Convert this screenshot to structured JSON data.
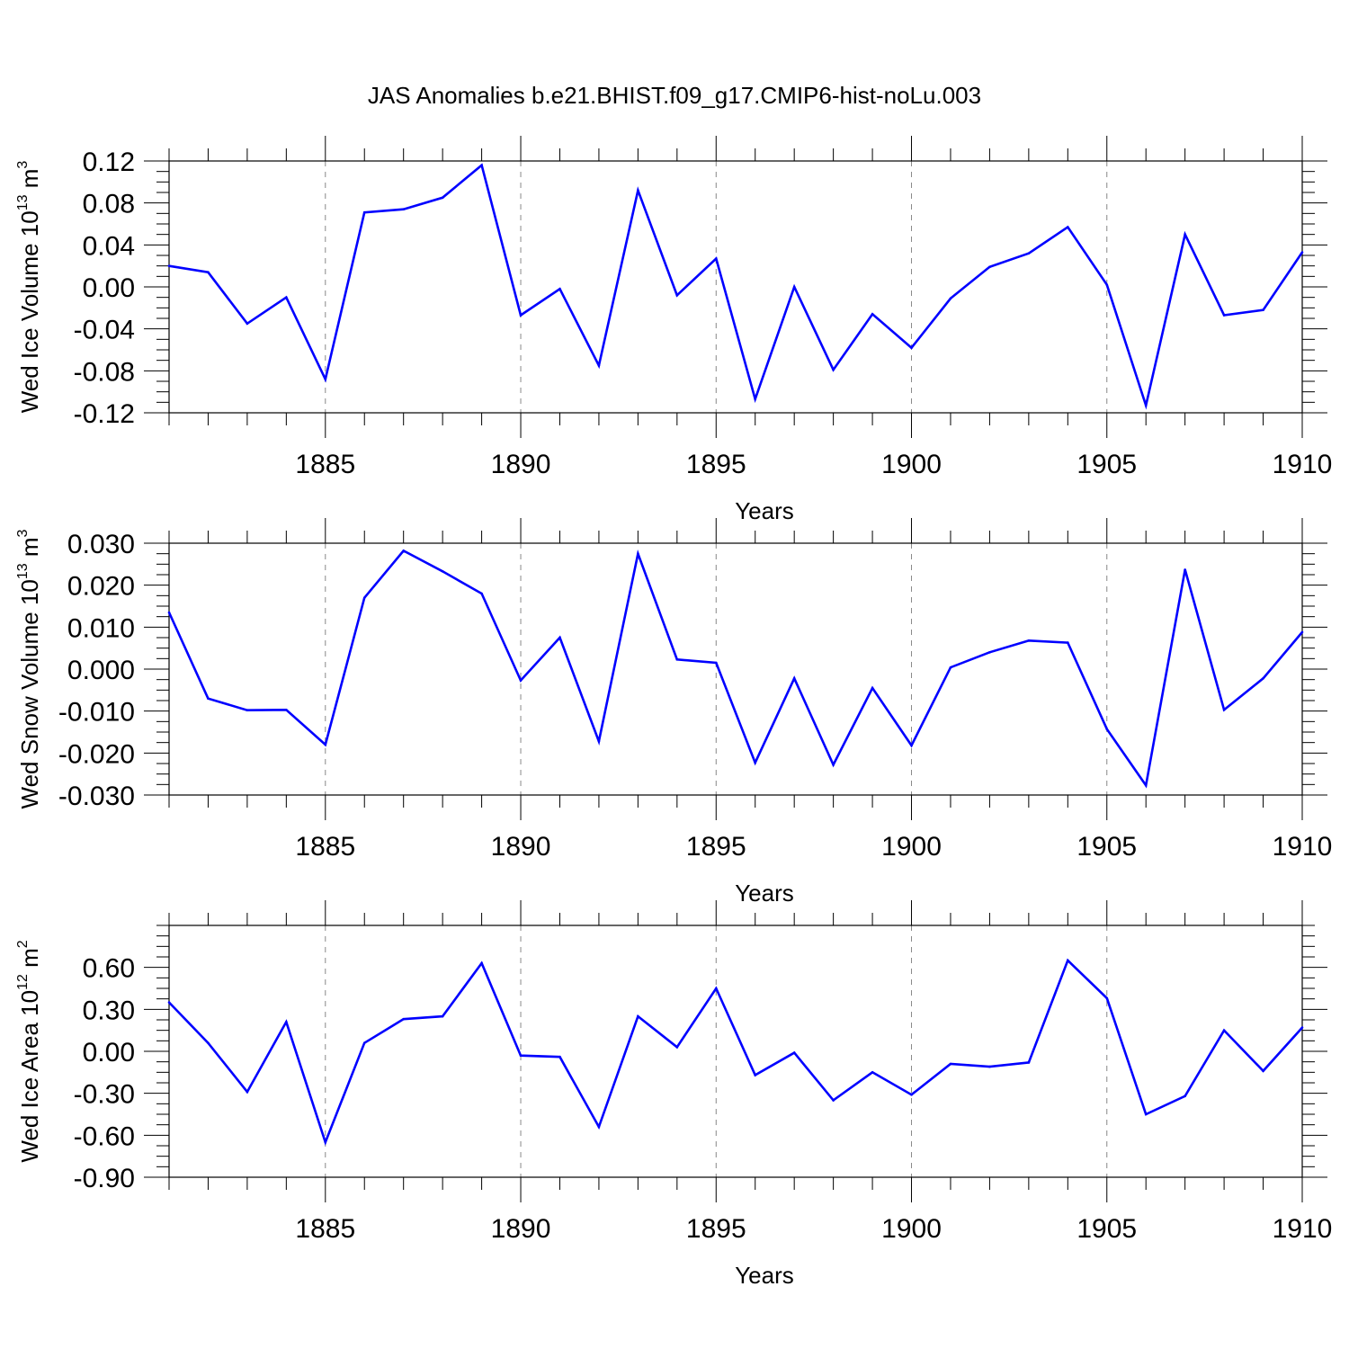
{
  "title": "JAS Anomalies b.e21.BHIST.f09_g17.CMIP6-hist-noLu.003",
  "colors": {
    "line": "#0000ff",
    "axes": "#000000",
    "grid": "#888888",
    "background": "#ffffff"
  },
  "chart_data": [
    {
      "type": "line",
      "ylabel": "Wed Ice Volume 10",
      "ylabel_sup": "13",
      "ylabel_unit": " m",
      "ylabel_unit_sup": "3",
      "xlabel": "Years",
      "xlim": [
        1881,
        1910
      ],
      "ylim": [
        -0.12,
        0.12
      ],
      "xticks": [
        1885,
        1890,
        1895,
        1900,
        1905,
        1910
      ],
      "xtick_labels": [
        "1885",
        "1890",
        "1895",
        "1900",
        "1905",
        "1910"
      ],
      "yticks": [
        -0.12,
        -0.08,
        -0.04,
        0.0,
        0.04,
        0.08,
        0.12
      ],
      "ytick_labels": [
        "-0.12",
        "-0.08",
        "-0.04",
        "0.00",
        "0.04",
        "0.08",
        "0.12"
      ],
      "grid": "vertical dashed at major x ticks",
      "x": [
        1881,
        1882,
        1883,
        1884,
        1885,
        1886,
        1887,
        1888,
        1889,
        1890,
        1891,
        1892,
        1893,
        1894,
        1895,
        1896,
        1897,
        1898,
        1899,
        1900,
        1901,
        1902,
        1903,
        1904,
        1905,
        1906,
        1907,
        1908,
        1909,
        1910
      ],
      "series": [
        {
          "name": "Wed Ice Volume",
          "values": [
            0.02,
            0.014,
            -0.035,
            -0.01,
            -0.088,
            0.071,
            0.074,
            0.085,
            0.116,
            -0.027,
            -0.002,
            -0.075,
            0.092,
            -0.008,
            0.027,
            -0.107,
            0.0,
            -0.079,
            -0.026,
            -0.058,
            -0.011,
            0.019,
            0.032,
            0.057,
            0.002,
            -0.113,
            0.05,
            -0.027,
            -0.022,
            0.033
          ]
        }
      ]
    },
    {
      "type": "line",
      "ylabel": "Wed Snow Volume 10",
      "ylabel_sup": "13",
      "ylabel_unit": " m",
      "ylabel_unit_sup": "3",
      "xlabel": "Years",
      "xlim": [
        1881,
        1910
      ],
      "ylim": [
        -0.03,
        0.03
      ],
      "xticks": [
        1885,
        1890,
        1895,
        1900,
        1905,
        1910
      ],
      "xtick_labels": [
        "1885",
        "1890",
        "1895",
        "1900",
        "1905",
        "1910"
      ],
      "yticks": [
        -0.03,
        -0.02,
        -0.01,
        0.0,
        0.01,
        0.02,
        0.03
      ],
      "ytick_labels": [
        "-0.030",
        "-0.020",
        "-0.010",
        "0.000",
        "0.010",
        "0.020",
        "0.030"
      ],
      "grid": "vertical dashed at major x ticks",
      "x": [
        1881,
        1882,
        1883,
        1884,
        1885,
        1886,
        1887,
        1888,
        1889,
        1890,
        1891,
        1892,
        1893,
        1894,
        1895,
        1896,
        1897,
        1898,
        1899,
        1900,
        1901,
        1902,
        1903,
        1904,
        1905,
        1906,
        1907,
        1908,
        1909,
        1910
      ],
      "series": [
        {
          "name": "Wed Snow Volume",
          "values": [
            0.0135,
            -0.007,
            -0.0098,
            -0.0097,
            -0.018,
            0.017,
            0.0282,
            0.0233,
            0.018,
            -0.0027,
            0.0075,
            -0.0172,
            0.0275,
            0.0023,
            0.0015,
            -0.0223,
            -0.0022,
            -0.0228,
            -0.0045,
            -0.0182,
            0.0004,
            0.004,
            0.0068,
            0.0063,
            -0.0143,
            -0.0277,
            0.0237,
            -0.0097,
            -0.0022,
            0.0088
          ]
        }
      ]
    },
    {
      "type": "line",
      "ylabel": "Wed Ice Area 10",
      "ylabel_sup": "12",
      "ylabel_unit": " m",
      "ylabel_unit_sup": "2",
      "xlabel": "Years",
      "xlim": [
        1881,
        1910
      ],
      "ylim": [
        -0.9,
        0.9
      ],
      "xticks": [
        1885,
        1890,
        1895,
        1900,
        1905,
        1910
      ],
      "xtick_labels": [
        "1885",
        "1890",
        "1895",
        "1900",
        "1905",
        "1910"
      ],
      "yticks": [
        -0.9,
        -0.6,
        -0.3,
        0.0,
        0.3,
        0.6
      ],
      "ytick_labels": [
        "-0.90",
        "-0.60",
        "-0.30",
        "0.00",
        "0.30",
        "0.60"
      ],
      "grid": "vertical dashed at major x ticks",
      "x": [
        1881,
        1882,
        1883,
        1884,
        1885,
        1886,
        1887,
        1888,
        1889,
        1890,
        1891,
        1892,
        1893,
        1894,
        1895,
        1896,
        1897,
        1898,
        1899,
        1900,
        1901,
        1902,
        1903,
        1904,
        1905,
        1906,
        1907,
        1908,
        1909,
        1910
      ],
      "series": [
        {
          "name": "Wed Ice Area",
          "values": [
            0.35,
            0.06,
            -0.29,
            0.21,
            -0.65,
            0.06,
            0.23,
            0.25,
            0.63,
            -0.03,
            -0.04,
            -0.54,
            0.25,
            0.03,
            0.45,
            -0.17,
            -0.01,
            -0.35,
            -0.15,
            -0.31,
            -0.09,
            -0.11,
            -0.08,
            0.65,
            0.38,
            -0.45,
            -0.32,
            0.15,
            -0.14,
            0.17
          ]
        }
      ]
    }
  ]
}
